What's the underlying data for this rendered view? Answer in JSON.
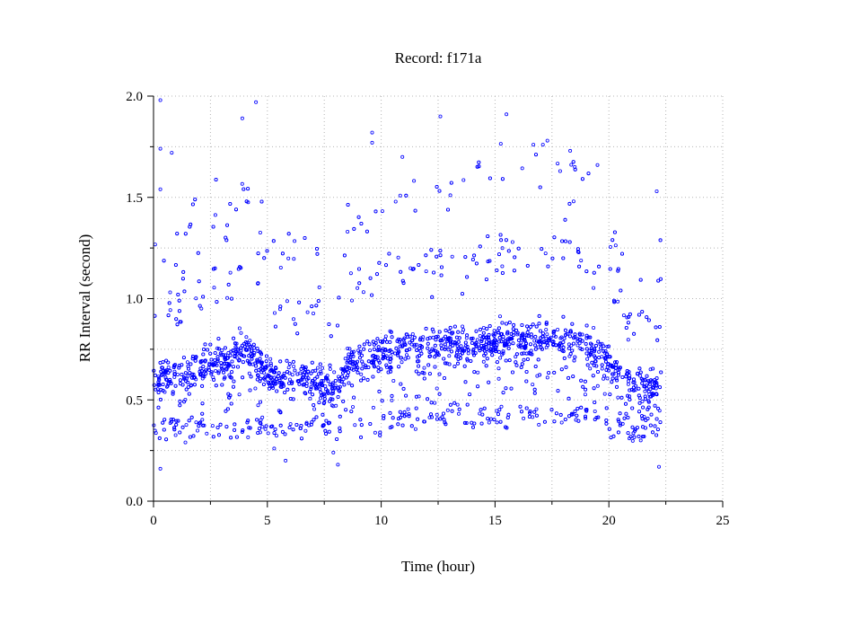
{
  "chart_data": {
    "type": "scatter",
    "title": "Record:  f171a",
    "xlabel": "Time (hour)",
    "ylabel": "RR Interval (second)",
    "xlim": [
      0,
      25
    ],
    "ylim": [
      0.0,
      2.0
    ],
    "x_ticks": [
      "0",
      "5",
      "10",
      "15",
      "20",
      "25"
    ],
    "y_ticks": [
      "0.0",
      "0.5",
      "1.0",
      "1.5",
      "2.0"
    ],
    "grid": true,
    "marker_color": "#0000ff",
    "x_extent_hours": [
      0,
      22.3
    ],
    "series_notes": "dense RR-interval scatter",
    "band_profile": [
      [
        0.0,
        0.6
      ],
      [
        1.0,
        0.62
      ],
      [
        2.0,
        0.66
      ],
      [
        2.7,
        0.7
      ],
      [
        3.2,
        0.68
      ],
      [
        3.8,
        0.75
      ],
      [
        4.5,
        0.72
      ],
      [
        5.0,
        0.62
      ],
      [
        6.0,
        0.6
      ],
      [
        7.0,
        0.61
      ],
      [
        8.0,
        0.55
      ],
      [
        8.5,
        0.68
      ],
      [
        9.5,
        0.7
      ],
      [
        10.0,
        0.74
      ],
      [
        11.0,
        0.75
      ],
      [
        12.0,
        0.75
      ],
      [
        13.0,
        0.76
      ],
      [
        14.0,
        0.78
      ],
      [
        15.0,
        0.78
      ],
      [
        16.0,
        0.8
      ],
      [
        17.0,
        0.8
      ],
      [
        18.0,
        0.8
      ],
      [
        19.0,
        0.78
      ],
      [
        19.8,
        0.72
      ],
      [
        20.5,
        0.6
      ],
      [
        21.0,
        0.56
      ],
      [
        22.3,
        0.58
      ]
    ],
    "sample_outliers": [
      [
        0.3,
        1.98
      ],
      [
        0.3,
        1.74
      ],
      [
        0.8,
        1.72
      ],
      [
        0.3,
        1.54
      ],
      [
        3.9,
        1.89
      ],
      [
        4.5,
        1.97
      ],
      [
        9.6,
        1.82
      ],
      [
        9.6,
        1.77
      ],
      [
        12.6,
        1.9
      ],
      [
        15.5,
        1.91
      ],
      [
        17.3,
        1.78
      ],
      [
        17.1,
        1.76
      ],
      [
        18.3,
        1.73
      ],
      [
        18.5,
        1.65
      ],
      [
        19.5,
        1.66
      ],
      [
        22.1,
        1.53
      ],
      [
        0.3,
        0.16
      ],
      [
        5.8,
        0.2
      ],
      [
        8.1,
        0.18
      ],
      [
        22.2,
        0.17
      ],
      [
        7.9,
        0.24
      ],
      [
        1.4,
        0.29
      ],
      [
        20.9,
        0.31
      ],
      [
        5.3,
        0.26
      ],
      [
        21.4,
        0.3
      ]
    ]
  }
}
